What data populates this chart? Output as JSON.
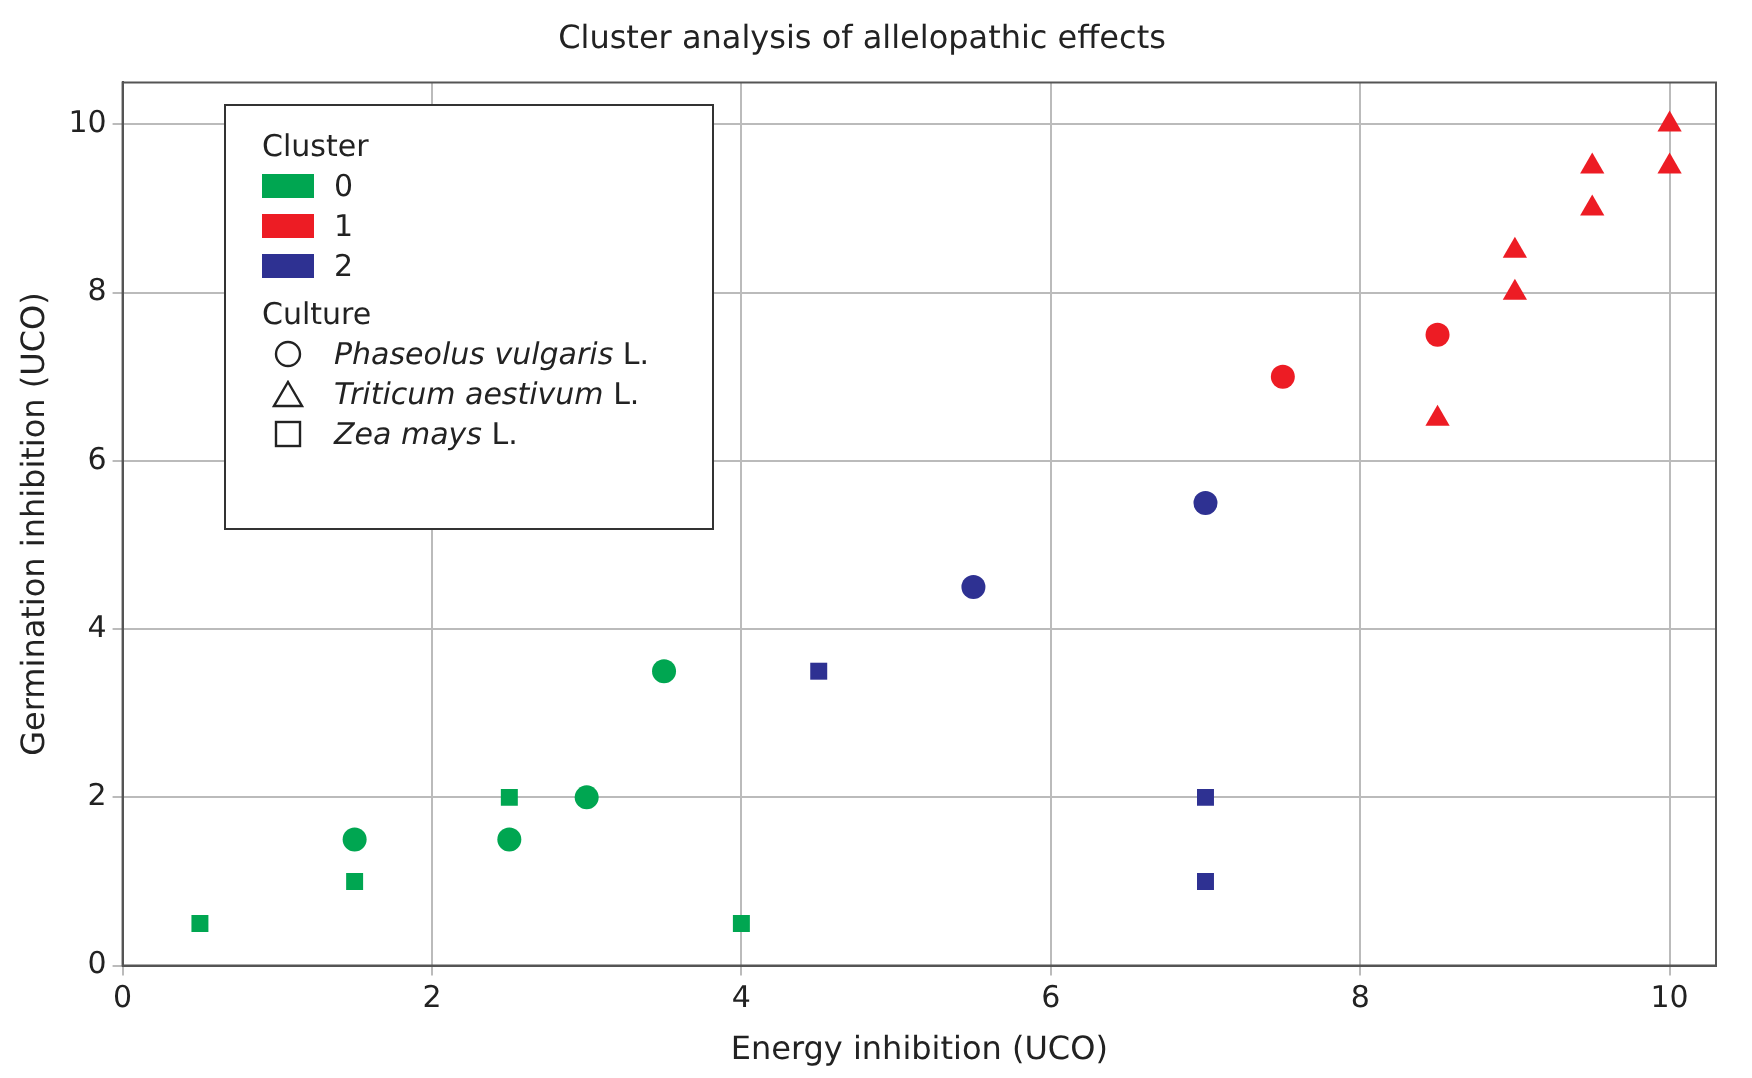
{
  "chart_data": {
    "type": "scatter",
    "title": "Cluster analysis of allelopathic effects",
    "xlabel": "Energy inhibition (UCO)",
    "ylabel": "Germination inhibition (UCO)",
    "xlim": [
      0,
      10.3
    ],
    "ylim": [
      0,
      10.5
    ],
    "xticks": [
      0,
      2,
      4,
      6,
      8,
      10
    ],
    "yticks": [
      0,
      2,
      4,
      6,
      8,
      10
    ],
    "grid": true,
    "legend": "top left",
    "legend_title": "Cluster",
    "annotations": [
      "Culture",
      "Phaseolus vulgaris L.",
      "Triticum aestivum L.",
      "Zea mays L."
    ],
    "series": [
      {
        "name": "0",
        "color": "#00a651",
        "marker": "circle",
        "x": [
          1.5,
          2.5,
          3,
          3.5
        ],
        "values": [
          1.5,
          1.5,
          2,
          3.5
        ]
      },
      {
        "name": "1",
        "color": "#ed1c24",
        "marker": "triangle",
        "x": [
          8.5,
          9,
          9,
          9.5,
          9.5,
          10,
          10
        ],
        "values": [
          6.5,
          8,
          8.5,
          9,
          9.5,
          10,
          9.5
        ]
      },
      {
        "color": "#00a651",
        "marker": "square",
        "x": [
          0.5,
          1.5,
          2.5,
          4
        ],
        "values": [
          0.5,
          1,
          2,
          0.5
        ]
      },
      {
        "color": "#ed1c24",
        "marker": "circle",
        "x": [
          7.5,
          8.5
        ],
        "values": [
          7,
          7.5
        ]
      },
      {
        "name": "2",
        "color": "#2e3192",
        "marker": "circle",
        "x": [
          5.5,
          7
        ],
        "values": [
          4.5,
          5.5
        ]
      },
      {
        "color": "#2e3192",
        "marker": "square",
        "x": [
          4.5,
          7,
          7
        ],
        "values": [
          3.5,
          2,
          1
        ]
      }
    ]
  }
}
